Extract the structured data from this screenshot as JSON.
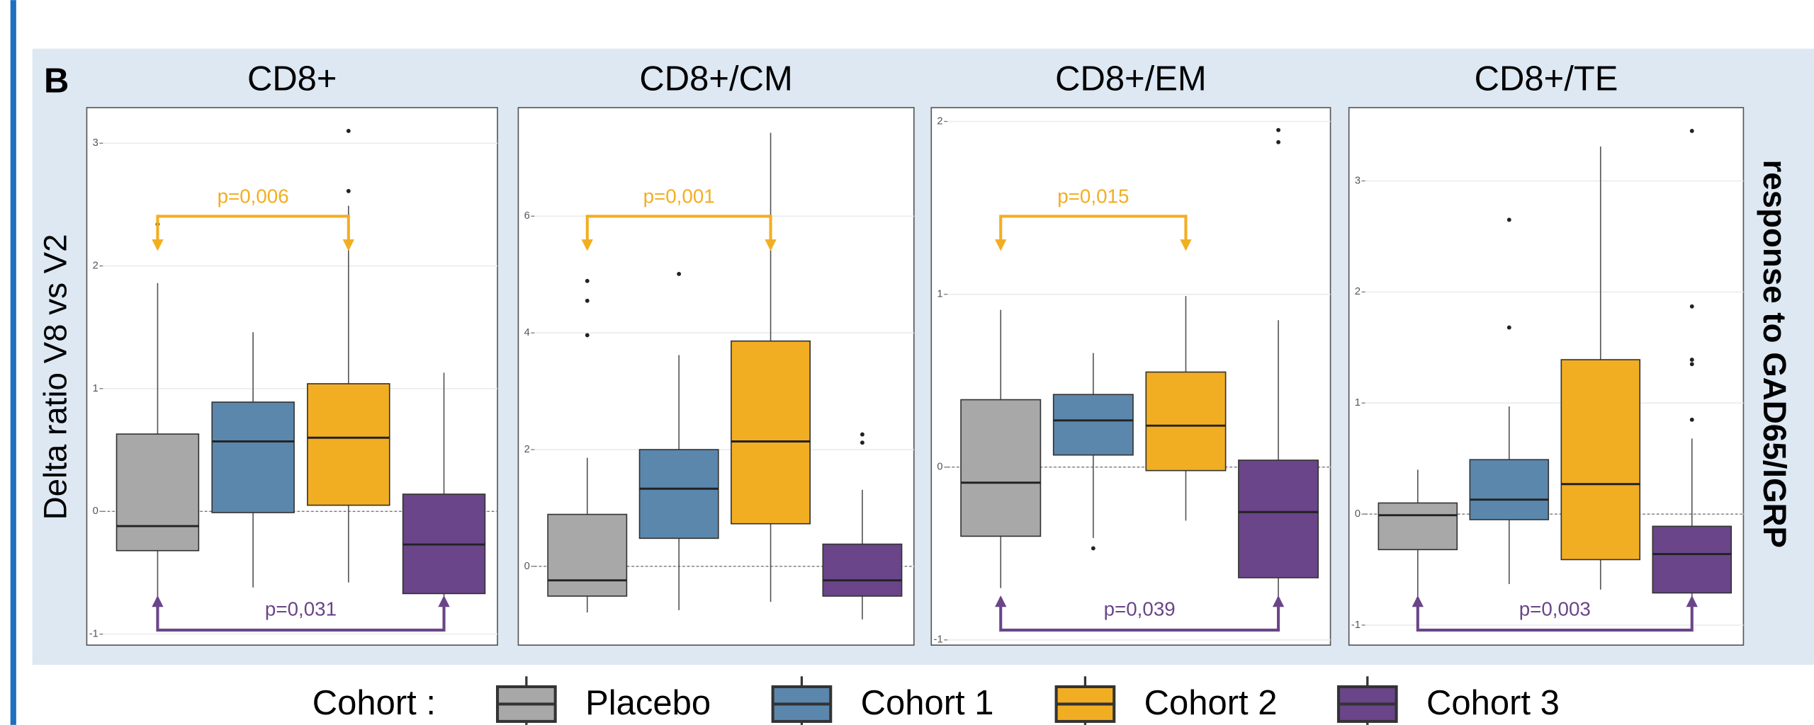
{
  "panel_label": "B",
  "y_label": "Delta ratio V8 vs V2",
  "right_label": "response to GAD65/IGRP",
  "legend": {
    "title": "Cohort :",
    "series": [
      {
        "name": "Placebo",
        "color": "#a8a8a8"
      },
      {
        "name": "Cohort 1",
        "color": "#5b87ad"
      },
      {
        "name": "Cohort 2",
        "color": "#f2ae22"
      },
      {
        "name": "Cohort 3",
        "color": "#6a4589"
      }
    ]
  },
  "chart_data": [
    {
      "type": "box",
      "title": "CD8+",
      "ylim": [
        -1.09,
        3.29
      ],
      "yticks": [
        -1,
        0,
        1,
        2,
        3
      ],
      "reference_line": 0,
      "grid": true,
      "boxes": [
        {
          "whislo": -0.7,
          "q1": -0.32,
          "med": -0.12,
          "q3": 0.63,
          "whishi": 1.86,
          "fliers": [
            2.34
          ]
        },
        {
          "whislo": -0.62,
          "q1": -0.01,
          "med": 0.57,
          "q3": 0.89,
          "whishi": 1.46,
          "fliers": []
        },
        {
          "whislo": -0.58,
          "q1": 0.05,
          "med": 0.6,
          "q3": 1.04,
          "whishi": 2.49,
          "fliers": [
            3.1,
            2.61
          ]
        },
        {
          "whislo": -0.89,
          "q1": -0.67,
          "med": -0.27,
          "q3": 0.14,
          "whishi": 1.13,
          "fliers": []
        }
      ],
      "comparisons": [
        {
          "label": "p=0,006",
          "color": "#f2ae22",
          "side": "top"
        },
        {
          "label": "p=0,031",
          "color": "#6a4589",
          "side": "bottom"
        }
      ]
    },
    {
      "type": "box",
      "title": "CD8+/CM",
      "ylim": [
        -1.35,
        7.86
      ],
      "yticks": [
        0,
        2,
        4,
        6
      ],
      "reference_line": 0,
      "grid": true,
      "boxes": [
        {
          "whislo": -0.79,
          "q1": -0.51,
          "med": -0.24,
          "q3": 0.89,
          "whishi": 1.86,
          "fliers": [
            4.89,
            4.55,
            3.96
          ]
        },
        {
          "whislo": -0.75,
          "q1": 0.48,
          "med": 1.33,
          "q3": 2.0,
          "whishi": 3.62,
          "fliers": [
            5.01
          ]
        },
        {
          "whislo": -0.61,
          "q1": 0.73,
          "med": 2.14,
          "q3": 3.86,
          "whishi": 7.43,
          "fliers": []
        },
        {
          "whislo": -0.91,
          "q1": -0.51,
          "med": -0.24,
          "q3": 0.38,
          "whishi": 1.31,
          "fliers": [
            2.26,
            2.12
          ]
        }
      ],
      "comparisons": [
        {
          "label": "p=0,001",
          "color": "#f2ae22",
          "side": "top"
        }
      ]
    },
    {
      "type": "box",
      "title": "CD8+/EM",
      "ylim": [
        -1.03,
        2.08
      ],
      "yticks": [
        -1,
        0,
        1,
        2
      ],
      "reference_line": 0,
      "grid": true,
      "boxes": [
        {
          "whislo": -0.7,
          "q1": -0.4,
          "med": -0.09,
          "q3": 0.39,
          "whishi": 0.91,
          "fliers": []
        },
        {
          "whislo": -0.41,
          "q1": 0.07,
          "med": 0.27,
          "q3": 0.42,
          "whishi": 0.66,
          "fliers": [
            -0.47
          ]
        },
        {
          "whislo": -0.31,
          "q1": -0.02,
          "med": 0.24,
          "q3": 0.55,
          "whishi": 0.99,
          "fliers": []
        },
        {
          "whislo": -0.9,
          "q1": -0.64,
          "med": -0.26,
          "q3": 0.04,
          "whishi": 0.85,
          "fliers": [
            1.95,
            1.88
          ]
        }
      ],
      "comparisons": [
        {
          "label": "p=0,015",
          "color": "#f2ae22",
          "side": "top"
        },
        {
          "label": "p=0,039",
          "color": "#6a4589",
          "side": "bottom"
        }
      ]
    },
    {
      "type": "box",
      "title": "CD8+/TE",
      "ylim": [
        -1.18,
        3.66
      ],
      "yticks": [
        -1,
        0,
        1,
        2,
        3
      ],
      "reference_line": 0,
      "grid": true,
      "boxes": [
        {
          "whislo": -0.75,
          "q1": -0.32,
          "med": -0.01,
          "q3": 0.1,
          "whishi": 0.4,
          "fliers": []
        },
        {
          "whislo": -0.63,
          "q1": -0.05,
          "med": 0.13,
          "q3": 0.49,
          "whishi": 0.97,
          "fliers": [
            2.65,
            1.68
          ]
        },
        {
          "whislo": -0.68,
          "q1": -0.41,
          "med": 0.27,
          "q3": 1.39,
          "whishi": 3.31,
          "fliers": []
        },
        {
          "whislo": -0.94,
          "q1": -0.71,
          "med": -0.36,
          "q3": -0.11,
          "whishi": 0.68,
          "fliers": [
            3.45,
            1.87,
            1.39,
            1.35,
            0.85
          ]
        }
      ],
      "comparisons": [
        {
          "label": "p=0,003",
          "color": "#6a4589",
          "side": "bottom"
        }
      ]
    }
  ]
}
